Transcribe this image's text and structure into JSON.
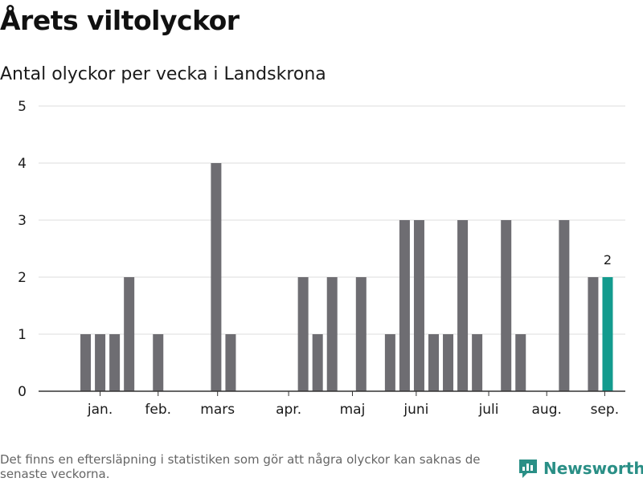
{
  "title": "Årets viltolyckor",
  "subtitle": "Antal olyckor per vecka i Landskrona",
  "footnote": "Det finns en eftersläpning i statistiken som gör att några olyckor kan saknas de senaste veckorna.",
  "brand": {
    "name": "Newsworthy",
    "icon": "newsworthy-logo-icon"
  },
  "colors": {
    "bar": "#6e6d72",
    "highlight": "#139b8e",
    "grid": "#dddddd",
    "axis": "#333333",
    "brand": "#2a8f86"
  },
  "chart_data": {
    "type": "bar",
    "title": "Antal olyckor per vecka i Landskrona",
    "xlabel": "",
    "ylabel": "",
    "ylim": [
      0,
      5
    ],
    "yticks": [
      0,
      1,
      2,
      3,
      4,
      5
    ],
    "x_start_week": 1,
    "x_end_week": 39,
    "weeks": [
      1,
      2,
      3,
      4,
      5,
      6,
      7,
      8,
      9,
      10,
      11,
      12,
      13,
      14,
      15,
      16,
      17,
      18,
      19,
      20,
      21,
      22,
      23,
      24,
      25,
      26,
      27,
      28,
      29,
      30,
      31,
      32,
      33,
      34,
      35,
      36,
      37,
      38,
      39
    ],
    "values": [
      0,
      1,
      1,
      1,
      2,
      0,
      1,
      0,
      0,
      0,
      4,
      1,
      0,
      0,
      0,
      0,
      2,
      1,
      2,
      0,
      2,
      0,
      1,
      3,
      3,
      1,
      1,
      3,
      1,
      0,
      3,
      1,
      0,
      0,
      3,
      0,
      2,
      2,
      0
    ],
    "month_labels": [
      {
        "label": "jan.",
        "week": 3
      },
      {
        "label": "feb.",
        "week": 7
      },
      {
        "label": "mars",
        "week": 11.1
      },
      {
        "label": "apr.",
        "week": 16
      },
      {
        "label": "maj",
        "week": 20.4
      },
      {
        "label": "juni",
        "week": 24.8
      },
      {
        "label": "juli",
        "week": 29.8
      },
      {
        "label": "aug.",
        "week": 33.8
      },
      {
        "label": "sep.",
        "week": 37.8
      }
    ],
    "highlight_week": 38,
    "highlight_label": "2",
    "grid": true,
    "legend": "none"
  }
}
